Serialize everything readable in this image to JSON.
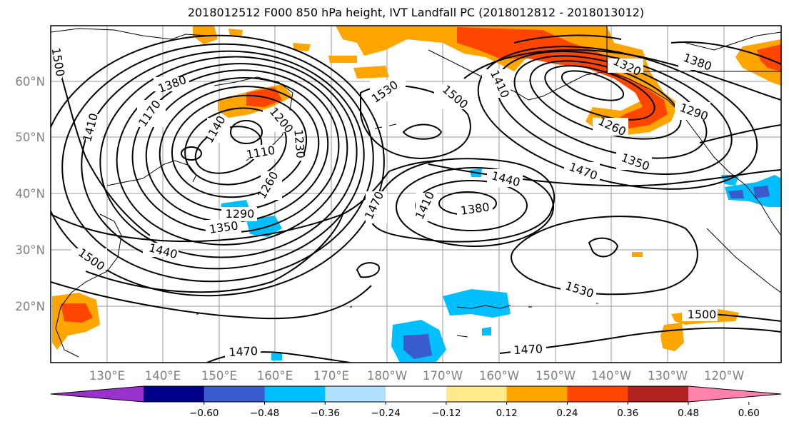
{
  "title": "2018012512 F000 850 hPa height, IVT Landfall PC (2018012812 - 2018013012)",
  "lat_labels": [
    "60°N",
    "50°N",
    "40°N",
    "30°N",
    "20°N"
  ],
  "lon_labels": [
    "130°E",
    "140°E",
    "150°E",
    "160°E",
    "170°E",
    "180°W",
    "170°W",
    "160°W",
    "150°W",
    "140°W",
    "130°W",
    "120°W"
  ],
  "contour_labels": [
    "1500",
    "1380",
    "1320",
    "1410",
    "1170",
    "1140",
    "1200",
    "1230",
    "1110",
    "1260",
    "1290",
    "1350",
    "1440",
    "1500",
    "1530",
    "1500",
    "1410",
    "1320",
    "1380",
    "1290",
    "1260",
    "1350",
    "1470",
    "1440",
    "1410",
    "1380",
    "1470",
    "1530",
    "1500",
    "1470",
    "1470"
  ],
  "colorbar": {
    "colors": [
      "#9932cc",
      "#00008b",
      "#3a5bcc",
      "#00bfff",
      "#b0e2ff",
      "#ffffff",
      "#ffe98a",
      "#ffa500",
      "#ff4500",
      "#b22222",
      "#ff82ab"
    ],
    "ticks": [
      "−0.60",
      "−0.48",
      "−0.36",
      "−0.24",
      "−0.12",
      "0.12",
      "0.24",
      "0.36",
      "0.48",
      "0.60"
    ]
  }
}
